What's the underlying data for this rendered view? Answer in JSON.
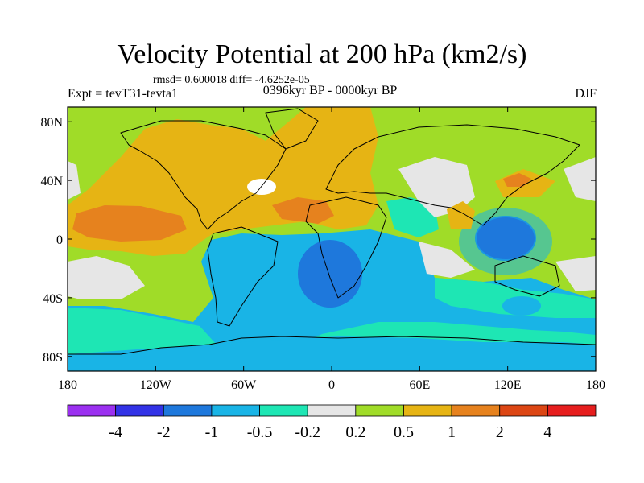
{
  "title": "Velocity Potential at 200 hPa (km2/s)",
  "stats": "rmsd= 0.600018 diff= -4.6252e-05",
  "experiment": "Expt = tevT31-tevta1",
  "period": "0396kyr BP - 0000kyr BP",
  "season": "DJF",
  "chart_data": {
    "type": "heatmap",
    "map": "global contour fill, longitude 180W-180E, latitude 90S-90N",
    "x_ticks": [
      {
        "lon": -180,
        "label": "180"
      },
      {
        "lon": -120,
        "label": "120W"
      },
      {
        "lon": -60,
        "label": "60W"
      },
      {
        "lon": 0,
        "label": "0"
      },
      {
        "lon": 60,
        "label": "60E"
      },
      {
        "lon": 120,
        "label": "120E"
      },
      {
        "lon": 180,
        "label": "180"
      }
    ],
    "y_ticks": [
      {
        "lat": 80,
        "label": "80N"
      },
      {
        "lat": 40,
        "label": "40N"
      },
      {
        "lat": 0,
        "label": "0"
      },
      {
        "lat": -40,
        "label": "40S"
      },
      {
        "lat": -80,
        "label": "80S"
      }
    ],
    "xlim": [
      -180,
      180
    ],
    "ylim": [
      -90,
      90
    ],
    "colorbar": {
      "levels": [
        -4,
        -2,
        -1,
        -0.5,
        -0.2,
        0.2,
        0.5,
        1,
        2,
        4
      ],
      "labels": [
        "-4",
        "-2",
        "-1",
        "-0.5",
        "-0.2",
        "0.2",
        "0.5",
        "1",
        "2",
        "4"
      ],
      "colors": [
        "#9b30f0",
        "#3232e6",
        "#1e78dc",
        "#19b4e6",
        "#1ee6b4",
        "#e6e6e6",
        "#a0dc28",
        "#e6b414",
        "#e6821e",
        "#dc4614",
        "#e61e1e"
      ]
    }
  }
}
